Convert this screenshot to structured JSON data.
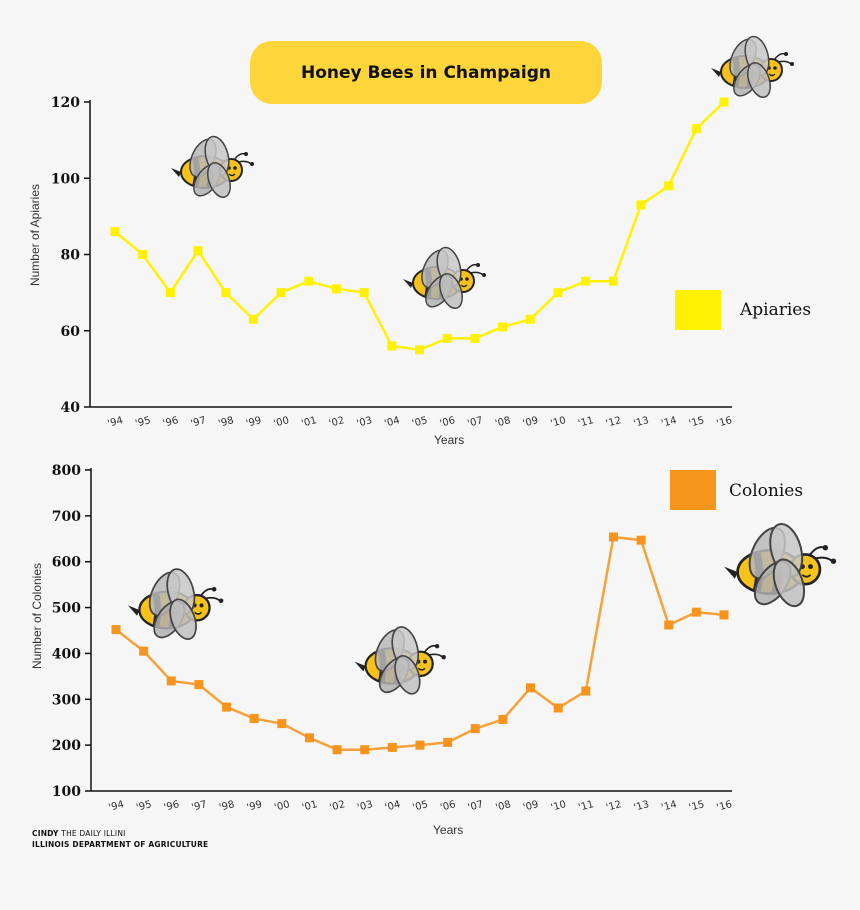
{
  "title": "Honey Bees in Champaign",
  "colors": {
    "apiaries": "#fff200",
    "colonies": "#f7a13a",
    "title_bg": "#fed53a"
  },
  "credit": {
    "author": "CINDY",
    "outlet": "THE DAILY ILLINI",
    "source": "ILLINOIS DEPARTMENT OF AGRICULTURE"
  },
  "chart_data": [
    {
      "type": "line",
      "title": "",
      "xlabel": "Years",
      "ylabel": "Number of Apiaries",
      "categories": [
        "'94",
        "'95",
        "'96",
        "'97",
        "'98",
        "'99",
        "'00",
        "'01",
        "'02",
        "'03",
        "'04",
        "'05",
        "'06",
        "'07",
        "'08",
        "'09",
        "'10",
        "'11",
        "'12",
        "'13",
        "'14",
        "'15",
        "'16"
      ],
      "series": [
        {
          "name": "Apiaries",
          "values": [
            86,
            80,
            70,
            81,
            70,
            63,
            70,
            73,
            71,
            70,
            56,
            55,
            58,
            58,
            61,
            63,
            70,
            73,
            73,
            93,
            98,
            113,
            120
          ]
        }
      ],
      "ylim": [
        40,
        120
      ],
      "yticks": [
        40,
        60,
        80,
        100,
        120
      ],
      "legend": "right"
    },
    {
      "type": "line",
      "title": "",
      "xlabel": "Years",
      "ylabel": "Number of Colonies",
      "categories": [
        "'94",
        "'95",
        "'96",
        "'97",
        "'98",
        "'99",
        "'00",
        "'01",
        "'02",
        "'03",
        "'04",
        "'05",
        "'06",
        "'07",
        "'08",
        "'09",
        "'10",
        "'11",
        "'12",
        "'13",
        "'14",
        "'15",
        "'16"
      ],
      "series": [
        {
          "name": "Colonies",
          "values": [
            452,
            405,
            340,
            332,
            283,
            258,
            247,
            216,
            190,
            190,
            195,
            200,
            206,
            236,
            256,
            325,
            281,
            318,
            654,
            647,
            462,
            490,
            484
          ]
        }
      ],
      "ylim": [
        100,
        800
      ],
      "yticks": [
        100,
        200,
        300,
        400,
        500,
        600,
        700,
        800
      ],
      "legend": "top-right"
    }
  ]
}
